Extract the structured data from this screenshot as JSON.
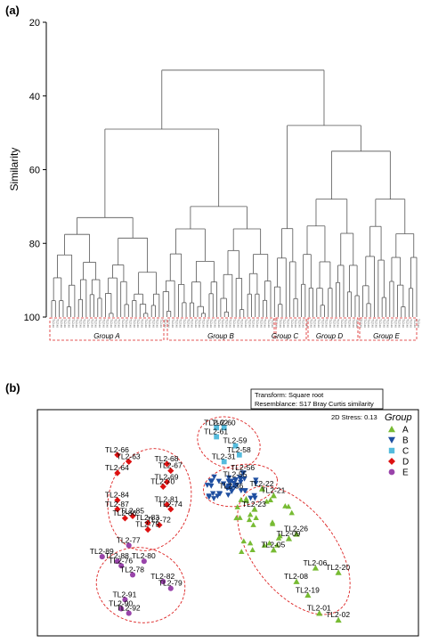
{
  "panels": {
    "a": "(a)",
    "b": "(b)"
  },
  "chart_data": [
    {
      "type": "dendrogram",
      "ylabel": "Similarity",
      "ylim": [
        20,
        100
      ],
      "yticks": [
        20,
        40,
        60,
        80,
        100
      ],
      "leaf_count": 96,
      "leaf_text": "TL2-xx",
      "groups": [
        {
          "name": "Group A",
          "leaves": [
            0,
            28
          ]
        },
        {
          "name": "Group B",
          "leaves": [
            29,
            57
          ]
        },
        {
          "name": "Group C",
          "leaves": [
            58,
            64
          ]
        },
        {
          "name": "Group D",
          "leaves": [
            65,
            80
          ]
        },
        {
          "name": "Group E",
          "leaves": [
            81,
            95
          ]
        }
      ],
      "key_merges": [
        {
          "groups": [
            "A",
            "B"
          ],
          "similarity": 49
        },
        {
          "groups": [
            "C",
            "D"
          ],
          "similarity": 56
        },
        {
          "groups": [
            "D",
            "E"
          ],
          "similarity": 48
        },
        {
          "groups": [
            "AB",
            "CDE"
          ],
          "similarity": 33
        }
      ]
    },
    {
      "type": "scatter",
      "transform_text": "Transform: Square root",
      "resemblance_text": "Resemblance: S17 Bray Curtis similarity",
      "stress_text": "2D Stress: 0.13",
      "legend_title": "Group",
      "legend": [
        {
          "name": "A",
          "color": "#77bb33",
          "marker": "triangle-up"
        },
        {
          "name": "B",
          "color": "#1f4fa0",
          "marker": "triangle-down"
        },
        {
          "name": "C",
          "color": "#55bbdd",
          "marker": "square"
        },
        {
          "name": "D",
          "color": "#dd1111",
          "marker": "diamond"
        },
        {
          "name": "E",
          "color": "#9944aa",
          "marker": "circle"
        }
      ],
      "xlim": [
        0,
        100
      ],
      "ylim": [
        0,
        100
      ],
      "labeled_points": [
        {
          "label": "TL2-62",
          "x": 47,
          "y": 92,
          "group": "C"
        },
        {
          "label": "TL2-60",
          "x": 49,
          "y": 92,
          "group": "C"
        },
        {
          "label": "TL2-61",
          "x": 47,
          "y": 88,
          "group": "C"
        },
        {
          "label": "TL2-59",
          "x": 52,
          "y": 84,
          "group": "C"
        },
        {
          "label": "TL2-58",
          "x": 53,
          "y": 80,
          "group": "C"
        },
        {
          "label": "TL2-31",
          "x": 49,
          "y": 77,
          "group": "C"
        },
        {
          "label": "TL2-56",
          "x": 54,
          "y": 72,
          "group": "B"
        },
        {
          "label": "TL2-55",
          "x": 52,
          "y": 69,
          "group": "B"
        },
        {
          "label": "TL2-36",
          "x": 51,
          "y": 64,
          "group": "B"
        },
        {
          "label": "TL2-22",
          "x": 59,
          "y": 65,
          "group": "A"
        },
        {
          "label": "TL2-23",
          "x": 57,
          "y": 56,
          "group": "A"
        },
        {
          "label": "TL2-21",
          "x": 62,
          "y": 62,
          "group": "A"
        },
        {
          "label": "TL2-26",
          "x": 68,
          "y": 45,
          "group": "A"
        },
        {
          "label": "TL2-09",
          "x": 66,
          "y": 43,
          "group": "A"
        },
        {
          "label": "TL2-05",
          "x": 62,
          "y": 38,
          "group": "A"
        },
        {
          "label": "TL2-06",
          "x": 73,
          "y": 30,
          "group": "A"
        },
        {
          "label": "TL2-20",
          "x": 79,
          "y": 28,
          "group": "A"
        },
        {
          "label": "TL2-08",
          "x": 68,
          "y": 24,
          "group": "A"
        },
        {
          "label": "TL2-19",
          "x": 71,
          "y": 18,
          "group": "A"
        },
        {
          "label": "TL2-01",
          "x": 74,
          "y": 10,
          "group": "A"
        },
        {
          "label": "TL2-02",
          "x": 79,
          "y": 7,
          "group": "A"
        },
        {
          "label": "TL2-66",
          "x": 21,
          "y": 80,
          "group": "D"
        },
        {
          "label": "TL2-63",
          "x": 24,
          "y": 77,
          "group": "D"
        },
        {
          "label": "TL2-68",
          "x": 34,
          "y": 76,
          "group": "D"
        },
        {
          "label": "TL2-67",
          "x": 35,
          "y": 73,
          "group": "D"
        },
        {
          "label": "TL2-64",
          "x": 21,
          "y": 72,
          "group": "D"
        },
        {
          "label": "TL2-69",
          "x": 34,
          "y": 68,
          "group": "D"
        },
        {
          "label": "TL2-70",
          "x": 33,
          "y": 66,
          "group": "D"
        },
        {
          "label": "TL2-84",
          "x": 21,
          "y": 60,
          "group": "D"
        },
        {
          "label": "TL2-81",
          "x": 34,
          "y": 58,
          "group": "D"
        },
        {
          "label": "TL2-74",
          "x": 35,
          "y": 56,
          "group": "D"
        },
        {
          "label": "TL2-87",
          "x": 21,
          "y": 56,
          "group": "D"
        },
        {
          "label": "TL2-85",
          "x": 25,
          "y": 53,
          "group": "D"
        },
        {
          "label": "TL2-86",
          "x": 23,
          "y": 52,
          "group": "D"
        },
        {
          "label": "TL2-83",
          "x": 29,
          "y": 50,
          "group": "D"
        },
        {
          "label": "TL2-72",
          "x": 32,
          "y": 49,
          "group": "D"
        },
        {
          "label": "TL2-75",
          "x": 29,
          "y": 47,
          "group": "D"
        },
        {
          "label": "TL2-77",
          "x": 24,
          "y": 40,
          "group": "E"
        },
        {
          "label": "TL2-89",
          "x": 17,
          "y": 35,
          "group": "E"
        },
        {
          "label": "TL2-88",
          "x": 21,
          "y": 33,
          "group": "E"
        },
        {
          "label": "TL2-80",
          "x": 28,
          "y": 33,
          "group": "E"
        },
        {
          "label": "TL2-76",
          "x": 22,
          "y": 31,
          "group": "E"
        },
        {
          "label": "TL2-82",
          "x": 33,
          "y": 24,
          "group": "E"
        },
        {
          "label": "TL2-78",
          "x": 25,
          "y": 27,
          "group": "E"
        },
        {
          "label": "TL2-79",
          "x": 35,
          "y": 21,
          "group": "E"
        },
        {
          "label": "TL2-91",
          "x": 23,
          "y": 16,
          "group": "E"
        },
        {
          "label": "TL2-90",
          "x": 22,
          "y": 12,
          "group": "E"
        },
        {
          "label": "TL2-92",
          "x": 24,
          "y": 10,
          "group": "E"
        }
      ]
    }
  ]
}
